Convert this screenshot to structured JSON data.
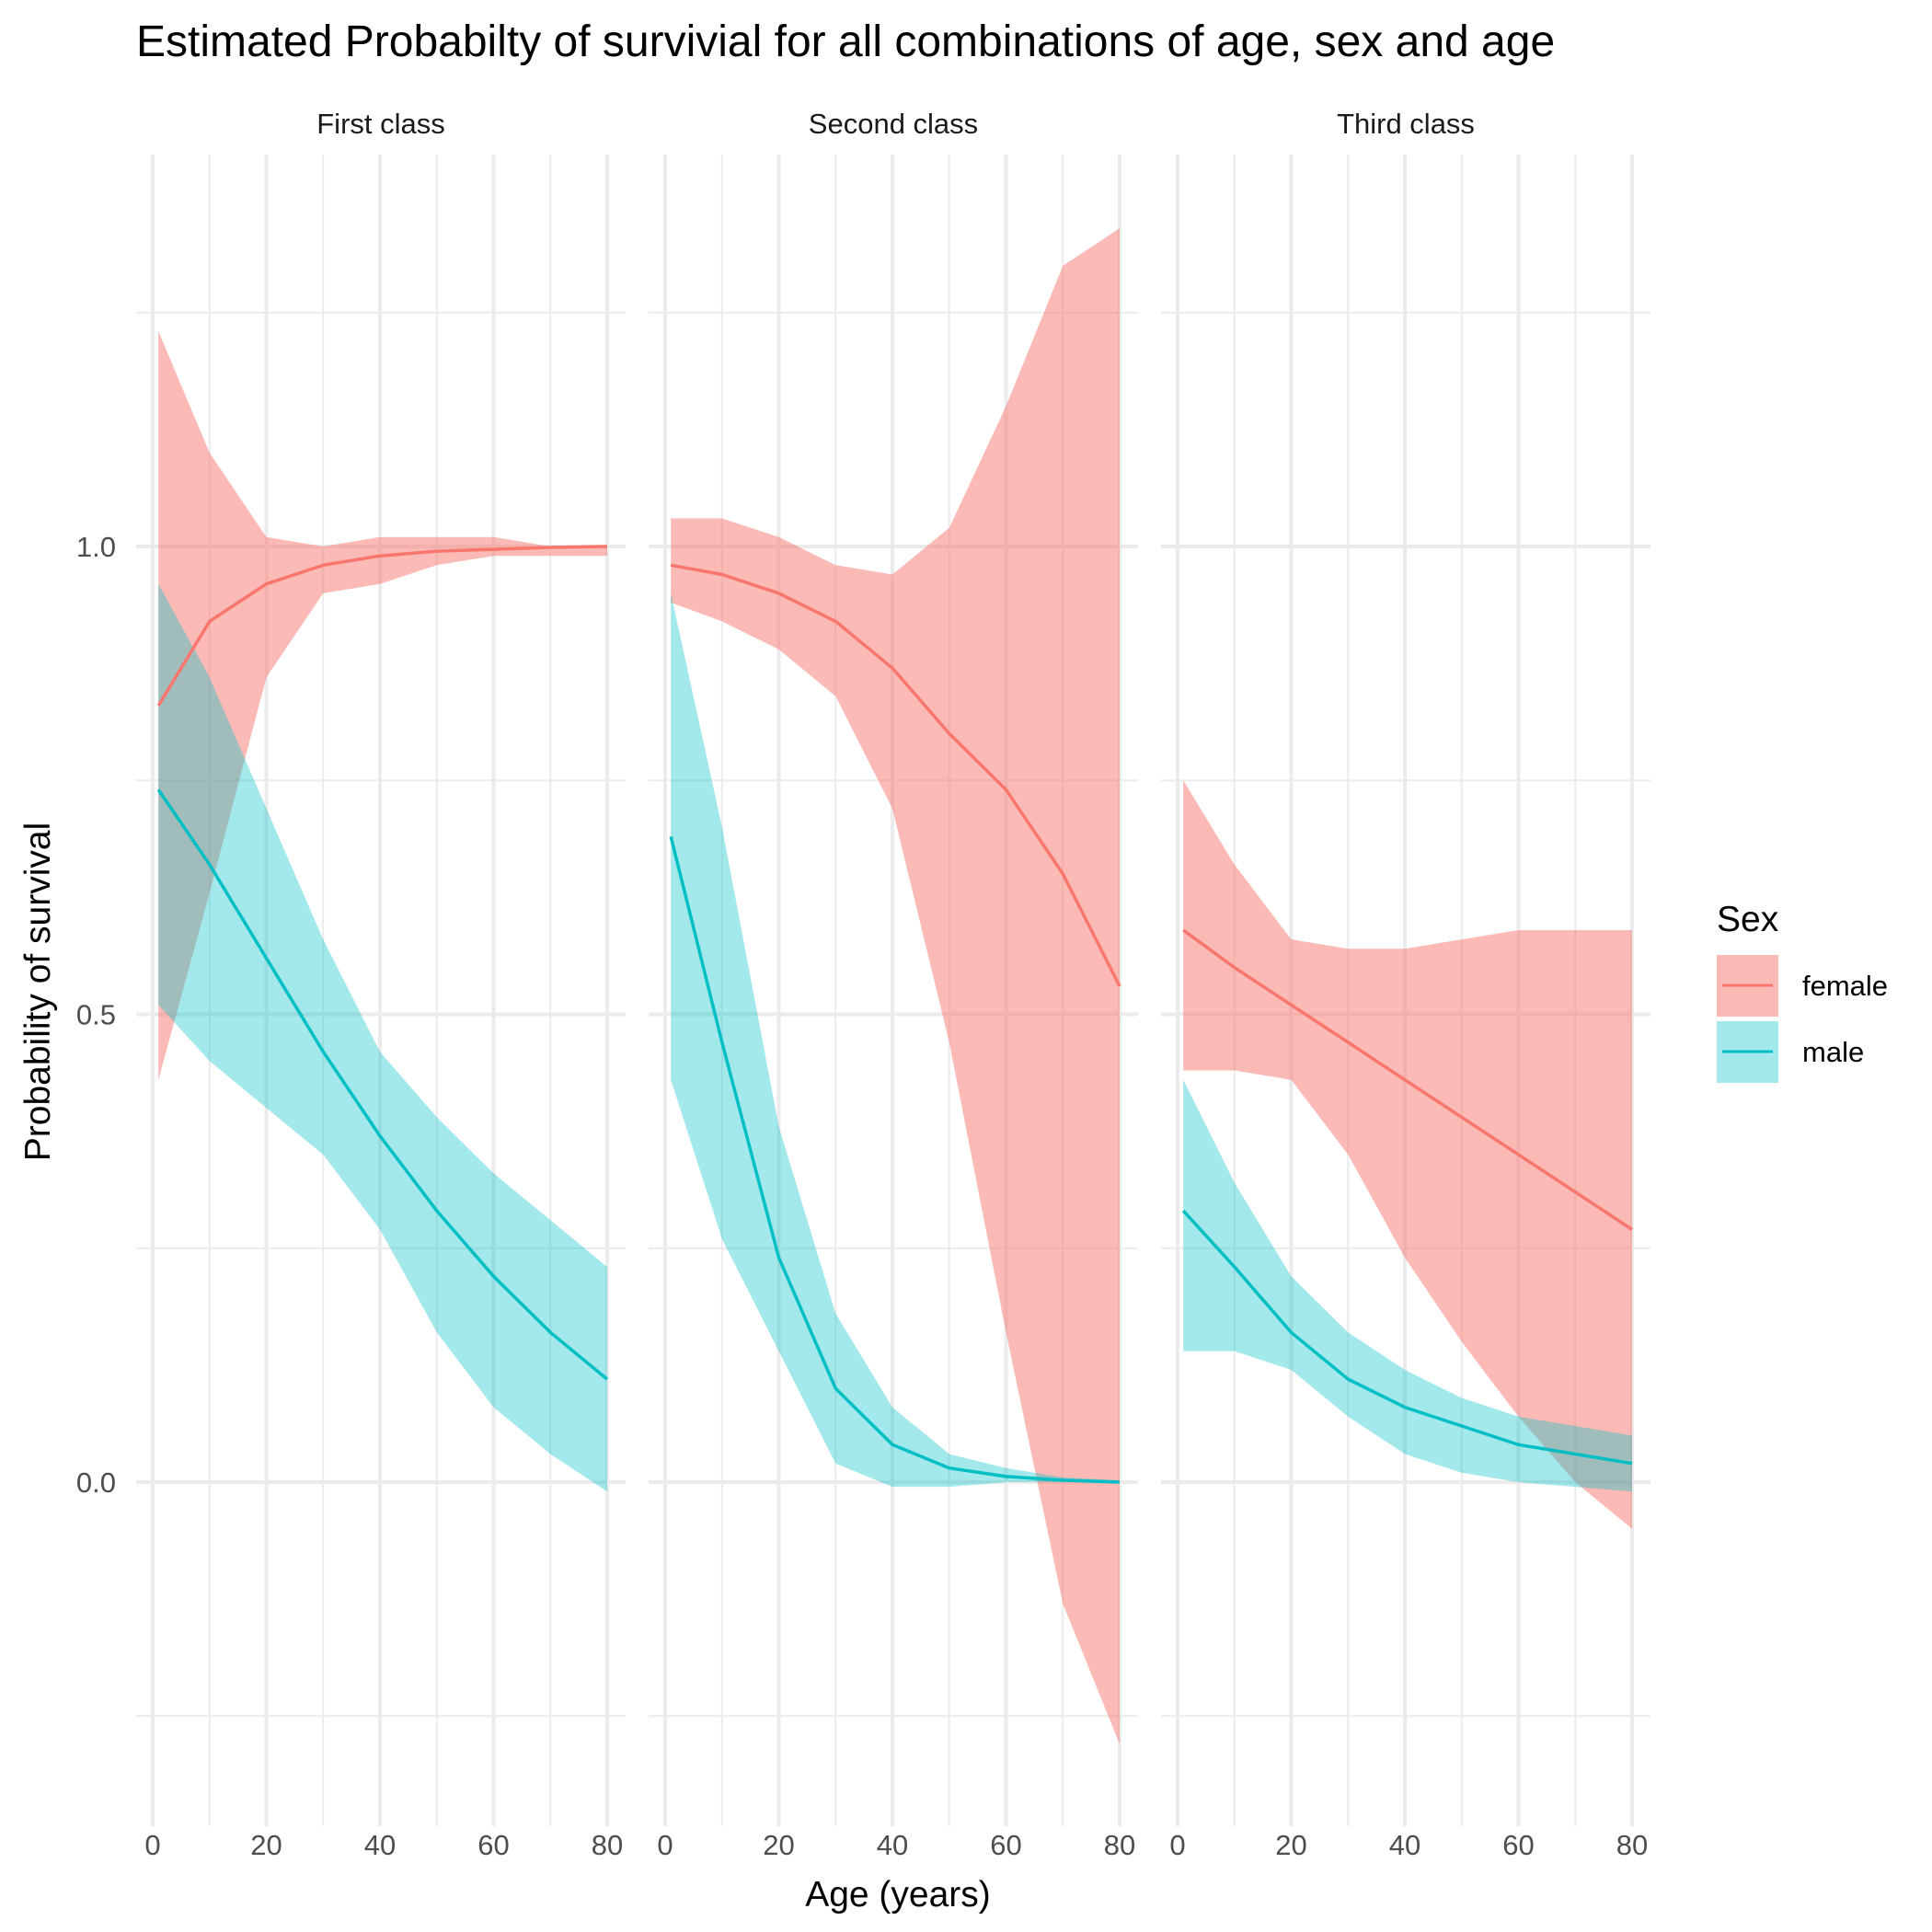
{
  "chart_data": {
    "type": "line",
    "title": "Estimated Probabilty of survivial for all combinations of age, sex and age",
    "xlabel": "Age (years)",
    "ylabel": "Probability of survival",
    "xlim": [
      0,
      80
    ],
    "ylim": [
      -0.3,
      1.4
    ],
    "x_ticks": [
      0,
      20,
      40,
      60,
      80
    ],
    "y_ticks": [
      0.0,
      0.5,
      1.0
    ],
    "y_tick_labels": [
      "0.0",
      "0.5",
      "1.0"
    ],
    "grid": true,
    "ribbons": "confidence band around each series",
    "legend": {
      "title": "Sex",
      "position": "right",
      "entries": [
        {
          "name": "female",
          "color": "#F8766D"
        },
        {
          "name": "male",
          "color": "#00BFC4"
        }
      ]
    },
    "x": [
      1,
      10,
      20,
      30,
      40,
      50,
      60,
      70,
      80
    ],
    "panels": [
      {
        "name": "First class",
        "series": [
          {
            "name": "female",
            "color": "#F8766D",
            "values": [
              0.83,
              0.92,
              0.96,
              0.98,
              0.99,
              0.995,
              0.997,
              0.999,
              1.0
            ],
            "lower": [
              0.43,
              0.63,
              0.86,
              0.95,
              0.96,
              0.98,
              0.99,
              0.99,
              0.99
            ],
            "upper": [
              1.23,
              1.1,
              1.01,
              1.0,
              1.01,
              1.01,
              1.01,
              1.0,
              1.0
            ]
          },
          {
            "name": "male",
            "color": "#00BFC4",
            "values": [
              0.74,
              0.66,
              0.56,
              0.46,
              0.37,
              0.29,
              0.22,
              0.16,
              0.11
            ],
            "lower": [
              0.51,
              0.45,
              0.4,
              0.35,
              0.27,
              0.16,
              0.08,
              0.03,
              -0.01
            ],
            "upper": [
              0.96,
              0.86,
              0.72,
              0.58,
              0.46,
              0.39,
              0.33,
              0.28,
              0.23
            ]
          }
        ]
      },
      {
        "name": "Second class",
        "series": [
          {
            "name": "female",
            "color": "#F8766D",
            "values": [
              0.98,
              0.97,
              0.95,
              0.92,
              0.87,
              0.8,
              0.74,
              0.65,
              0.53
            ],
            "lower": [
              0.94,
              0.92,
              0.89,
              0.84,
              0.72,
              0.47,
              0.16,
              -0.13,
              -0.28
            ],
            "upper": [
              1.03,
              1.03,
              1.01,
              0.98,
              0.97,
              1.02,
              1.15,
              1.3,
              1.34
            ]
          },
          {
            "name": "male",
            "color": "#00BFC4",
            "values": [
              0.69,
              0.47,
              0.24,
              0.1,
              0.04,
              0.015,
              0.006,
              0.002,
              0.0
            ],
            "lower": [
              0.43,
              0.26,
              0.14,
              0.02,
              -0.005,
              -0.005,
              0.0,
              0.0,
              0.0
            ],
            "upper": [
              0.95,
              0.7,
              0.38,
              0.18,
              0.08,
              0.03,
              0.015,
              0.005,
              0.002
            ]
          }
        ]
      },
      {
        "name": "Third class",
        "series": [
          {
            "name": "female",
            "color": "#F8766D",
            "values": [
              0.59,
              0.55,
              0.51,
              0.47,
              0.43,
              0.39,
              0.35,
              0.31,
              0.27
            ],
            "lower": [
              0.44,
              0.44,
              0.43,
              0.35,
              0.24,
              0.15,
              0.07,
              0.0,
              -0.05
            ],
            "upper": [
              0.75,
              0.66,
              0.58,
              0.57,
              0.57,
              0.58,
              0.59,
              0.59,
              0.59
            ]
          },
          {
            "name": "male",
            "color": "#00BFC4",
            "values": [
              0.29,
              0.23,
              0.16,
              0.11,
              0.08,
              0.06,
              0.04,
              0.03,
              0.02
            ],
            "lower": [
              0.14,
              0.14,
              0.12,
              0.07,
              0.03,
              0.01,
              0.0,
              -0.005,
              -0.01
            ],
            "upper": [
              0.43,
              0.32,
              0.22,
              0.16,
              0.12,
              0.09,
              0.07,
              0.06,
              0.05
            ]
          }
        ]
      }
    ]
  }
}
